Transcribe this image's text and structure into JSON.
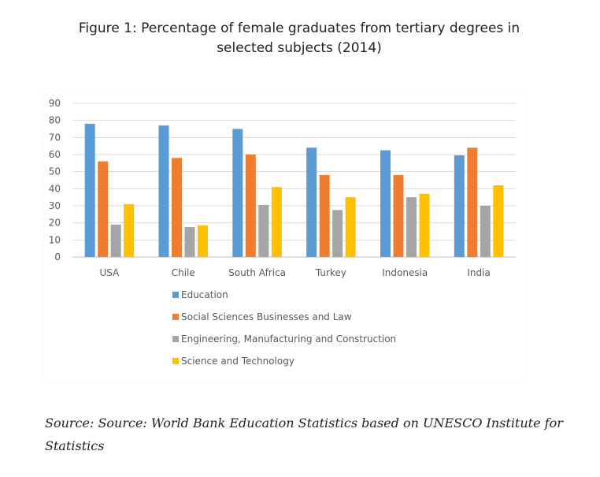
{
  "title_line1": "Figure 1: Percentage of female graduates from tertiary degrees in",
  "title_line2": "selected subjects (2014)",
  "source": "Source: Source: World Bank Education Statistics based on UNESCO Institute for Statistics",
  "chart_data": {
    "type": "bar",
    "categories": [
      "USA",
      "Chile",
      "South Africa",
      "Turkey",
      "Indonesia",
      "India"
    ],
    "series": [
      {
        "name": "Education",
        "color": "#5B9BD5",
        "values": [
          78,
          77,
          75,
          64,
          62.5,
          59.5
        ]
      },
      {
        "name": "Social Sciences Businesses and Law",
        "color": "#ED7D31",
        "values": [
          56,
          58,
          60,
          48,
          48,
          64
        ]
      },
      {
        "name": "Engineering, Manufacturing and Construction",
        "color": "#A5A5A5",
        "values": [
          19,
          17.5,
          30.5,
          27.5,
          35,
          30
        ]
      },
      {
        "name": "Science and Technology",
        "color": "#FFC000",
        "values": [
          31,
          18.5,
          41,
          35,
          37,
          42
        ]
      }
    ],
    "yticks": [
      "0",
      "10",
      "20",
      "30",
      "40",
      "50",
      "60",
      "70",
      "80",
      "90"
    ],
    "ylim": [
      0,
      90
    ],
    "grid": true,
    "legend": "bottom"
  }
}
